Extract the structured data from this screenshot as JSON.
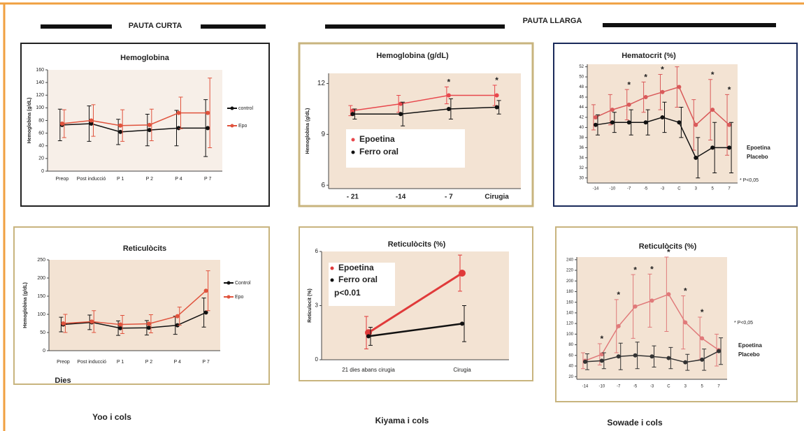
{
  "headers": [
    "PAUTA CURTA",
    "PAUTA LLARGA"
  ],
  "captions": [
    "Yoo i cols",
    "Kiyama i cols",
    "Sowade i cols"
  ],
  "chart_data": [
    {
      "type": "line",
      "title": "Hemoglobina",
      "y_label": "Hemoglobina (g/dL)",
      "categories": [
        "Preop",
        "Post inducció",
        "P 1",
        "P 2",
        "P 4",
        "P 7"
      ],
      "ylim": [
        0,
        160
      ],
      "yticks": [
        0,
        20,
        40,
        60,
        80,
        100,
        120,
        140,
        160
      ],
      "series": [
        {
          "name": "control",
          "color": "#111111",
          "values": [
            73,
            75,
            62,
            65,
            68,
            68
          ],
          "errors": [
            25,
            28,
            20,
            25,
            28,
            45
          ]
        },
        {
          "name": "Epo",
          "color": "#e0533d",
          "values": [
            75,
            80,
            72,
            73,
            92,
            92
          ],
          "errors": [
            22,
            25,
            25,
            25,
            25,
            55
          ]
        }
      ]
    },
    {
      "type": "line",
      "title": "Hemoglobina (g/dL)",
      "y_label": "Hemoglobina (g/dL)",
      "categories": [
        "- 21",
        "-14",
        "- 7",
        "Cirugia"
      ],
      "ylim": [
        5.8,
        12.6
      ],
      "yticks": [
        6,
        9,
        12
      ],
      "annotations": [
        "*",
        "*"
      ],
      "series": [
        {
          "name": "Epoetina",
          "color": "#e8474c",
          "values": [
            10.4,
            10.8,
            11.3,
            11.3
          ],
          "errors": [
            0.3,
            0.5,
            0.5,
            0.6
          ]
        },
        {
          "name": "Ferro oral",
          "color": "#111111",
          "values": [
            10.2,
            10.2,
            10.5,
            10.6
          ],
          "errors": [
            0.3,
            0.7,
            0.6,
            0.4
          ]
        }
      ]
    },
    {
      "type": "line",
      "title": "Hematocrit (%)",
      "categories": [
        "-14",
        "-10",
        "-7",
        "-5",
        "-3",
        "C",
        "3",
        "5",
        "7"
      ],
      "ylim": [
        29,
        52.5
      ],
      "yticks": [
        30,
        32,
        34,
        36,
        38,
        40,
        42,
        44,
        46,
        48,
        50,
        52
      ],
      "annotations": [
        "*",
        "*",
        "*",
        "*",
        "*",
        "* P<0,05"
      ],
      "series": [
        {
          "name": "Epoetina",
          "color": "#d95a5a",
          "values": [
            42,
            43.5,
            44.5,
            46,
            47,
            48,
            40.5,
            43.5,
            40.5
          ],
          "errors": [
            2.5,
            3,
            3,
            3,
            3.5,
            4,
            5,
            6,
            6
          ]
        },
        {
          "name": "Placebo",
          "color": "#111111",
          "values": [
            40.5,
            41,
            41,
            41,
            42,
            41,
            34,
            36,
            36
          ],
          "errors": [
            2,
            2,
            2.5,
            2.5,
            3,
            3,
            4,
            5,
            5
          ]
        }
      ]
    },
    {
      "type": "line",
      "title": "Reticulòcits",
      "y_label": "Hemoglobina (g/dL)",
      "x_label": "Dies",
      "categories": [
        "Preop",
        "Post inducció",
        "P 1",
        "P 2",
        "P 4",
        "P 7"
      ],
      "ylim": [
        0,
        250
      ],
      "yticks": [
        0,
        50,
        100,
        150,
        200,
        250
      ],
      "series": [
        {
          "name": "Control",
          "color": "#111111",
          "values": [
            72,
            78,
            62,
            63,
            70,
            105
          ],
          "errors": [
            20,
            20,
            20,
            20,
            25,
            40
          ]
        },
        {
          "name": "Epo",
          "color": "#e0533d",
          "values": [
            75,
            80,
            72,
            74,
            95,
            165
          ],
          "errors": [
            25,
            30,
            25,
            25,
            25,
            55
          ]
        }
      ]
    },
    {
      "type": "line",
      "title": "Reticulòcits (%)",
      "y_label": "Reticulocit (%)",
      "categories": [
        "21 dies abans cirugia",
        "Cirugia"
      ],
      "ylim": [
        0,
        6
      ],
      "yticks": [
        0,
        3,
        6
      ],
      "annotations": [
        "p<0.01"
      ],
      "series": [
        {
          "name": "Epoetina",
          "color": "#e03a3a",
          "values": [
            1.5,
            4.8
          ],
          "errors": [
            0.9,
            1.0
          ]
        },
        {
          "name": "Ferro oral",
          "color": "#111111",
          "values": [
            1.3,
            2.0
          ],
          "errors": [
            0.5,
            1.0
          ]
        }
      ]
    },
    {
      "type": "line",
      "title": "Reticulòcits (%)",
      "categories": [
        "-14",
        "-10",
        "-7",
        "-5",
        "-3",
        "C",
        "3",
        "5",
        "7"
      ],
      "ylim": [
        15,
        245
      ],
      "yticks": [
        20,
        40,
        60,
        80,
        100,
        120,
        140,
        160,
        180,
        200,
        220,
        240
      ],
      "annotations": [
        "*",
        "*",
        "*",
        "*",
        "*",
        "*",
        "*",
        "* P<0,05"
      ],
      "series": [
        {
          "name": "Epoetina",
          "color": "#e07a7a",
          "values": [
            50,
            62,
            115,
            152,
            163,
            175,
            122,
            92,
            70
          ],
          "errors": [
            15,
            20,
            50,
            60,
            50,
            70,
            50,
            40,
            30
          ]
        },
        {
          "name": "Placebo",
          "color": "#333333",
          "values": [
            48,
            50,
            58,
            60,
            58,
            55,
            47,
            52,
            68
          ],
          "errors": [
            15,
            15,
            25,
            25,
            20,
            20,
            15,
            20,
            25
          ]
        }
      ]
    }
  ]
}
